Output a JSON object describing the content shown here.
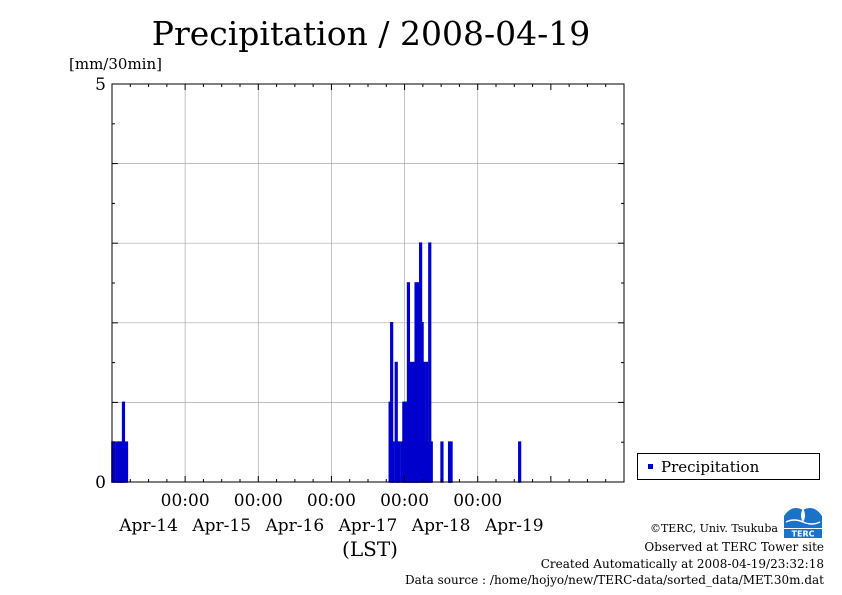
{
  "header": {
    "title": "Precipitation / 2008-04-19",
    "unit": "[mm/30min]"
  },
  "legend": {
    "label": "Precipitation",
    "color": "#0000cc"
  },
  "footer": {
    "copyright": "©TERC, Univ. Tsukuba",
    "observed": "Observed at TERC Tower site",
    "created": "Created Automatically at 2008-04-19/23:32:18",
    "source": "Data source : /home/hojyo/new/TERC-data/sorted_data/MET.30m.dat",
    "logo_text": "TERC"
  },
  "chart_data": {
    "type": "bar",
    "title": "Precipitation / 2008-04-19",
    "ylabel": "[mm/30min]",
    "xlabel": "(LST)",
    "ylim": [
      0,
      5
    ],
    "xlim": [
      "2008-04-13 00:00",
      "2008-04-20 00:00"
    ],
    "y_tick_labels": [
      "0",
      "5"
    ],
    "y_gridlines": [
      0,
      1,
      2,
      3,
      4,
      5
    ],
    "x_tick_labels": [
      "00:00",
      "00:00",
      "00:00",
      "00:00",
      "00:00"
    ],
    "x_tick_times": [
      "2008-04-14 00:00",
      "2008-04-15 00:00",
      "2008-04-16 00:00",
      "2008-04-17 00:00",
      "2008-04-18 00:00"
    ],
    "date_labels": [
      "Apr-14",
      "Apr-15",
      "Apr-16",
      "Apr-17",
      "Apr-18",
      "Apr-19"
    ],
    "grid": true,
    "legend_position": "right",
    "series": [
      {
        "name": "Precipitation",
        "color": "#0000cc",
        "values": [
          {
            "t": "2008-04-13 00:00",
            "v": 0.5
          },
          {
            "t": "2008-04-13 00:30",
            "v": 0.5
          },
          {
            "t": "2008-04-13 01:30",
            "v": 0.5
          },
          {
            "t": "2008-04-13 02:00",
            "v": 0.5
          },
          {
            "t": "2008-04-13 02:30",
            "v": 0.5
          },
          {
            "t": "2008-04-13 03:00",
            "v": 0.5
          },
          {
            "t": "2008-04-13 03:30",
            "v": 1.0
          },
          {
            "t": "2008-04-13 04:30",
            "v": 0.5
          },
          {
            "t": "2008-04-16 19:00",
            "v": 1.0
          },
          {
            "t": "2008-04-16 19:30",
            "v": 2.0
          },
          {
            "t": "2008-04-16 20:00",
            "v": 0.5
          },
          {
            "t": "2008-04-16 21:00",
            "v": 1.5
          },
          {
            "t": "2008-04-16 21:30",
            "v": 0.5
          },
          {
            "t": "2008-04-16 22:00",
            "v": 0.5
          },
          {
            "t": "2008-04-16 23:00",
            "v": 0.5
          },
          {
            "t": "2008-04-16 23:30",
            "v": 1.0
          },
          {
            "t": "2008-04-17 00:00",
            "v": 1.0
          },
          {
            "t": "2008-04-17 00:30",
            "v": 1.0
          },
          {
            "t": "2008-04-17 01:00",
            "v": 2.5
          },
          {
            "t": "2008-04-17 01:30",
            "v": 0.5
          },
          {
            "t": "2008-04-17 02:00",
            "v": 1.5
          },
          {
            "t": "2008-04-17 02:30",
            "v": 1.0
          },
          {
            "t": "2008-04-17 03:00",
            "v": 1.5
          },
          {
            "t": "2008-04-17 03:30",
            "v": 2.5
          },
          {
            "t": "2008-04-17 04:00",
            "v": 2.0
          },
          {
            "t": "2008-04-17 04:30",
            "v": 2.5
          },
          {
            "t": "2008-04-17 05:00",
            "v": 3.0
          },
          {
            "t": "2008-04-17 05:30",
            "v": 2.0
          },
          {
            "t": "2008-04-17 06:00",
            "v": 1.5
          },
          {
            "t": "2008-04-17 06:30",
            "v": 0.5
          },
          {
            "t": "2008-04-17 07:00",
            "v": 1.5
          },
          {
            "t": "2008-04-17 07:30",
            "v": 0.5
          },
          {
            "t": "2008-04-17 08:00",
            "v": 3.0
          },
          {
            "t": "2008-04-17 08:30",
            "v": 0.5
          },
          {
            "t": "2008-04-17 12:00",
            "v": 0.5
          },
          {
            "t": "2008-04-17 14:30",
            "v": 0.5
          },
          {
            "t": "2008-04-17 15:00",
            "v": 0.5
          },
          {
            "t": "2008-04-18 13:30",
            "v": 0.5
          }
        ]
      }
    ]
  }
}
